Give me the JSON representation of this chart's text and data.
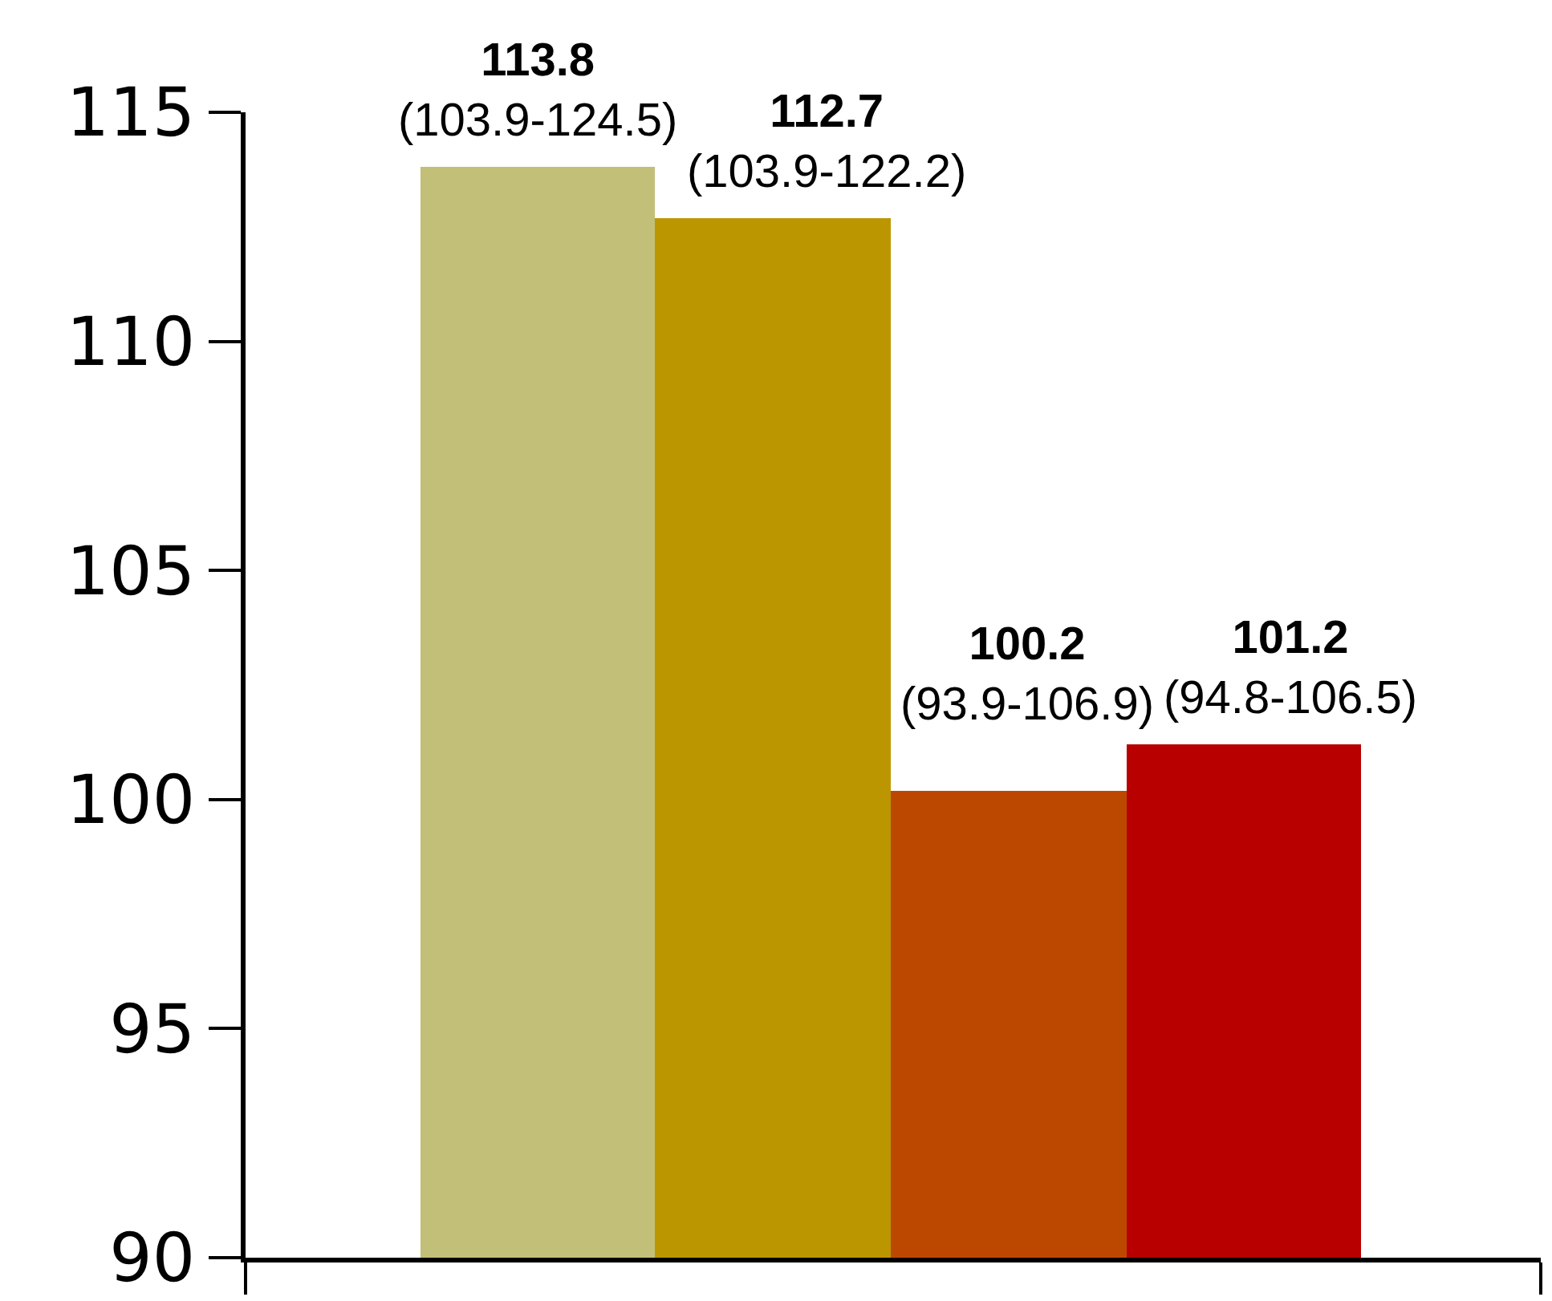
{
  "chart_data": {
    "type": "bar",
    "categories": [
      null,
      null,
      null,
      null
    ],
    "values": [
      113.8,
      112.7,
      100.2,
      101.2
    ],
    "colors": [
      "#c2bf78",
      "#bc9600",
      "#bc4800",
      "#b80000"
    ],
    "value_labels": [
      "113.8\n(103.9-124.5)",
      "112.7\n(103.9-122.2)",
      "100.2\n(93.9-106.9)",
      "101.2\n(94.8-106.5)"
    ],
    "ylim": [
      90,
      115
    ],
    "yticks": [
      90,
      95,
      100,
      105,
      110,
      115
    ]
  }
}
